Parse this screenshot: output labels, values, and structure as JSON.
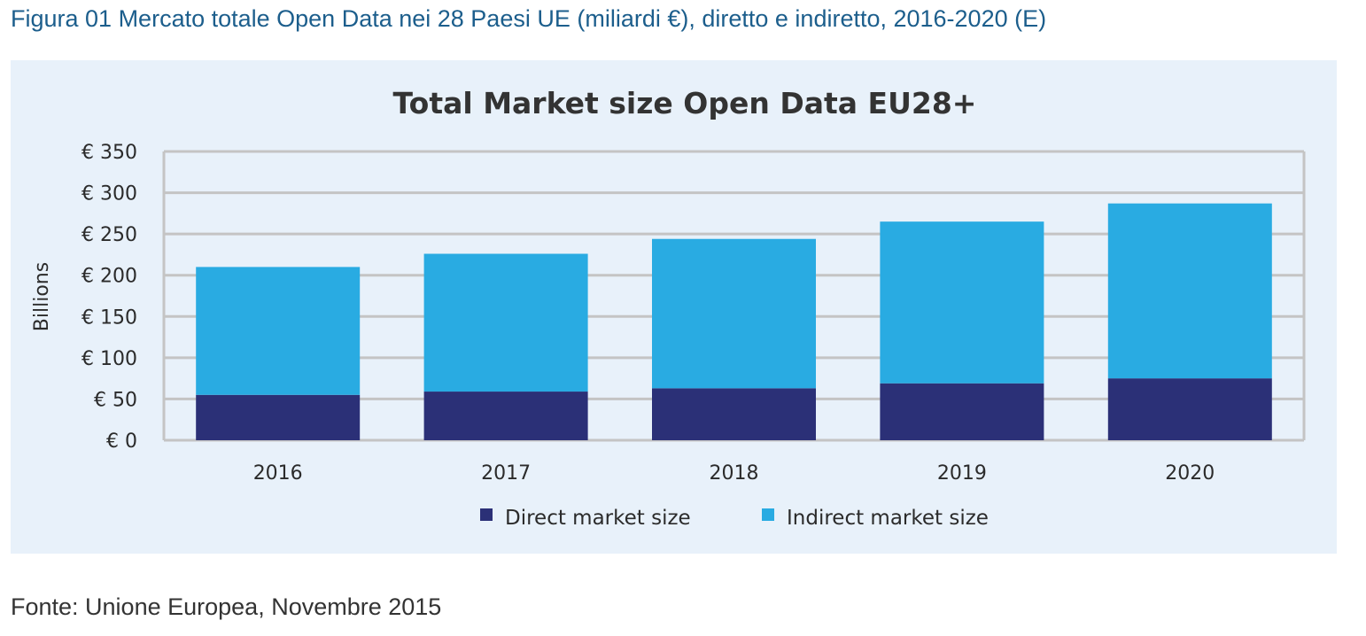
{
  "caption": "Figura 01 Mercato totale Open Data nei 28 Paesi UE (miliardi €), diretto e indiretto, 2016-2020 (E)",
  "source": "Fonte: Unione Europea, Novembre 2015",
  "colors": {
    "direct": "#2b3077",
    "indirect": "#29abe2",
    "panel": "#e8f1fa",
    "grid": "#c4c4c4"
  },
  "chart_data": {
    "type": "bar",
    "stacked": true,
    "title": "Total Market size Open Data EU28+",
    "xlabel": "",
    "ylabel": "Billions",
    "categories": [
      "2016",
      "2017",
      "2018",
      "2019",
      "2020"
    ],
    "series": [
      {
        "name": "Direct market size",
        "values": [
          55,
          59,
          63,
          69,
          75
        ]
      },
      {
        "name": "Indirect market size",
        "values": [
          155,
          167,
          181,
          196,
          212
        ]
      }
    ],
    "ylim": [
      0,
      350
    ],
    "yticks": [
      0,
      50,
      100,
      150,
      200,
      250,
      300,
      350
    ],
    "ytick_labels": [
      "€ 0",
      "€ 50",
      "€ 100",
      "€ 150",
      "€ 200",
      "€ 250",
      "€ 300",
      "€ 350"
    ],
    "grid": true,
    "legend_position": "bottom-center"
  }
}
